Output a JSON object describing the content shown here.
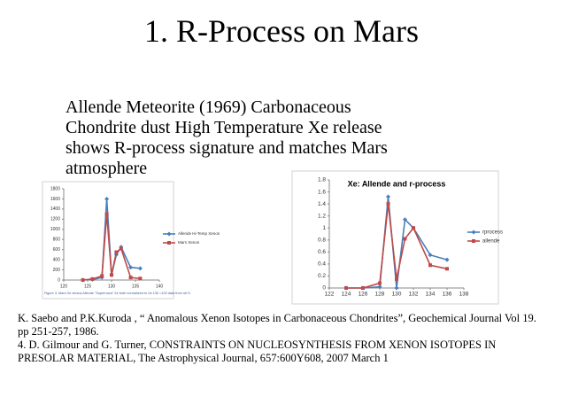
{
  "title": "1. R-Process on Mars",
  "body_lines": [
    " Allende Meteorite (1969) Carbonaceous",
    "Chondrite dust High Temperature Xe release",
    "shows R-process signature and matches Mars",
    "atmosphere"
  ],
  "references": [
    "K. Saebo and P.K.Kuroda , “ Anomalous Xenon Isotopes in Carbonaceous Chondrites”, Geochemical Journal Vol 19. pp 251-257, 1986.",
    "4. D. Gilmour and G. Turner, CONSTRAINTS ON NUCLEOSYNTHESIS FROM XENON ISOTOPES IN PRESOLAR MATERIAL, The Astrophysical Journal, 657:600Y608, 2007 March 1"
  ],
  "chart_data": [
    {
      "type": "line",
      "caption": "Figure 3. Mars Xe versus Allende \"Supernova\" Xe  both normalized to Xe 130 =100 data from ref 5.",
      "x": [
        124,
        126,
        128,
        129,
        130,
        131,
        132,
        134,
        136
      ],
      "series": [
        {
          "name": "Allende Hi-Temp  Xenon",
          "color": "#4a7ebb",
          "marker": "diamond",
          "values": [
            0,
            10,
            50,
            1600,
            100,
            500,
            650,
            250,
            230
          ]
        },
        {
          "name": "Mars Xenon",
          "color": "#be4b48",
          "marker": "square",
          "values": [
            0,
            20,
            80,
            1300,
            100,
            550,
            620,
            50,
            30
          ]
        }
      ],
      "xlim": [
        120,
        140
      ],
      "xticks": [
        120,
        125,
        130,
        135,
        140
      ],
      "ylim": [
        0,
        1800
      ],
      "yticks": [
        0,
        200,
        400,
        600,
        800,
        1000,
        1200,
        1400,
        1600,
        1800
      ],
      "grid": false
    },
    {
      "type": "line",
      "title": "Xe: Allende and  r-process",
      "x": [
        124,
        126,
        128,
        129,
        130,
        131,
        132,
        134,
        136
      ],
      "series": [
        {
          "name": "rprocess",
          "color": "#4a7ebb",
          "marker": "diamond",
          "values": [
            0,
            0,
            0.02,
            1.52,
            0,
            1.14,
            1.0,
            0.55,
            0.47
          ]
        },
        {
          "name": "allende",
          "color": "#be4b48",
          "marker": "square",
          "values": [
            0,
            0,
            0.08,
            1.4,
            0.15,
            0.82,
            1.0,
            0.38,
            0.32
          ]
        }
      ],
      "xlim": [
        122,
        138
      ],
      "xticks": [
        122,
        124,
        126,
        128,
        130,
        132,
        134,
        136,
        138
      ],
      "ylim": [
        0,
        1.8
      ],
      "yticks": [
        0,
        0.2,
        0.4,
        0.6,
        0.8,
        1,
        1.2,
        1.4,
        1.6,
        1.8
      ],
      "grid": false
    }
  ]
}
